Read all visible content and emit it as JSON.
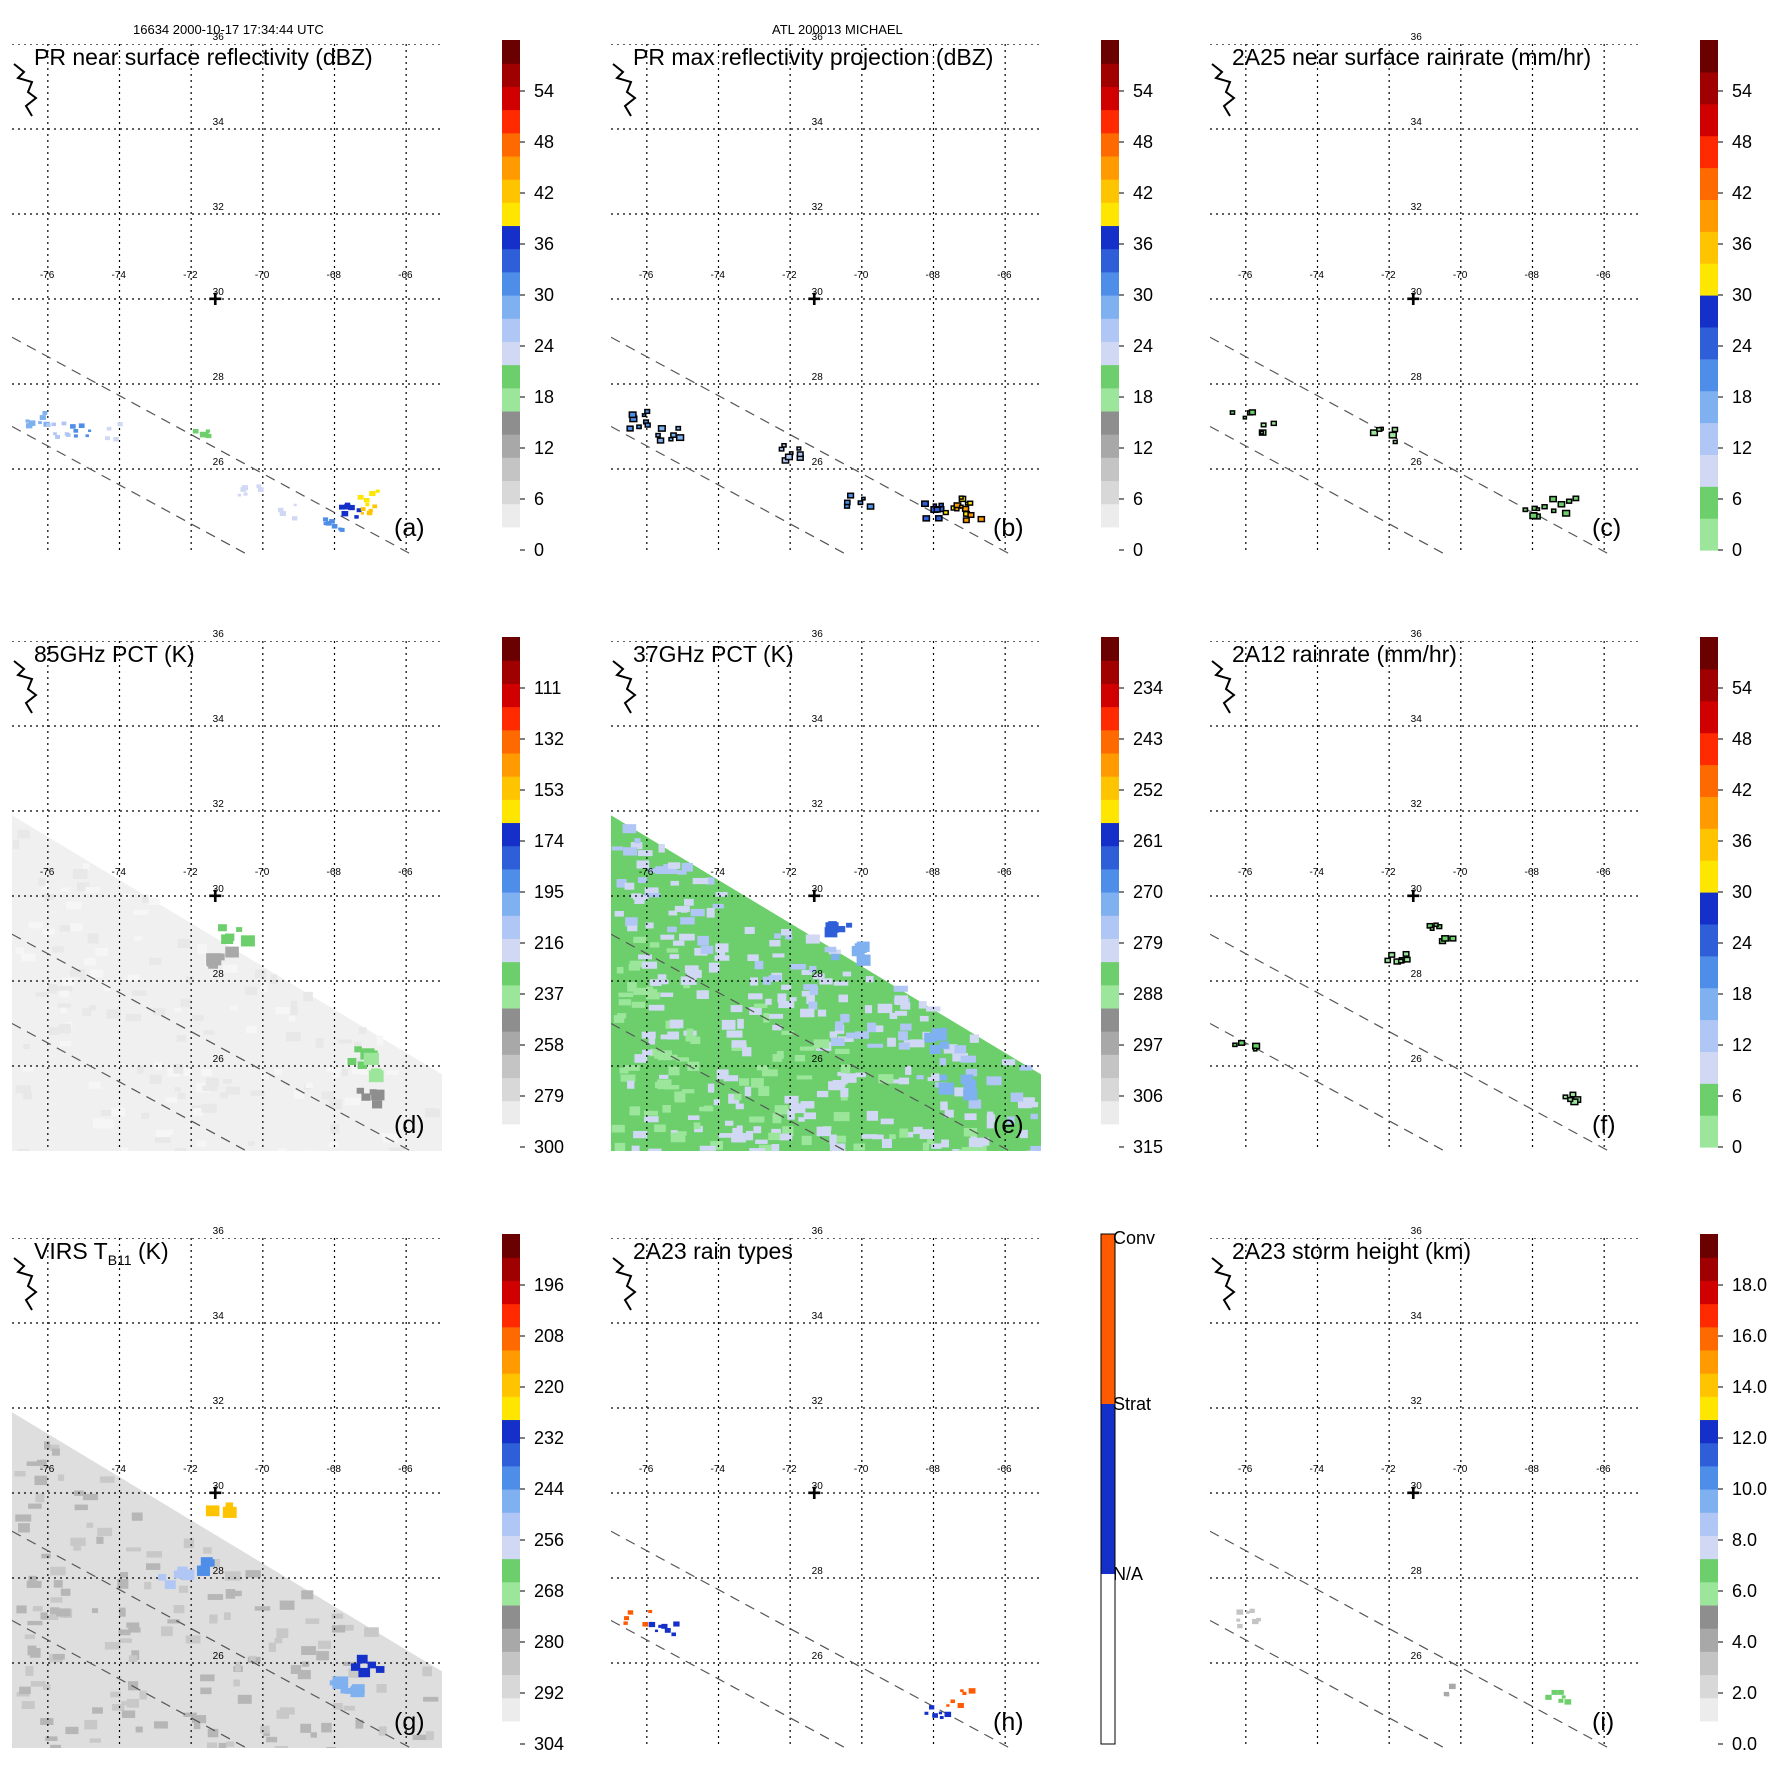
{
  "header": {
    "left": "16634 2000-10-17 17:34:44 UTC",
    "center": "ATL 200013 MICHAEL"
  },
  "colors": {
    "grayscale": [
      "#ffffff",
      "#ececec",
      "#d8d8d8",
      "#c4c4c4",
      "#a8a8a8",
      "#8e8e8e"
    ],
    "green": [
      "#9be69b",
      "#6ccf6c"
    ],
    "blue": [
      "#d0d8f4",
      "#b0c6f4",
      "#7fb0f0",
      "#4f8ee8",
      "#2f5fd8",
      "#1430c8"
    ],
    "warm": [
      "#ffe600",
      "#ffc400",
      "#ff9a00",
      "#ff6a00",
      "#ff2a00",
      "#d00000",
      "#a00000",
      "#6a0000"
    ],
    "raintype": [
      "#ffffff",
      "#1430c8",
      "#ff5a00"
    ],
    "sky_swath": "#f0f0f0",
    "ir_swath": "#dedede"
  },
  "map": {
    "lon_labels": [
      "-76",
      "-74",
      "-72",
      "-70",
      "-68",
      "-66"
    ],
    "lat_labels": [
      "36",
      "34",
      "32",
      "30",
      "28",
      "26"
    ],
    "storm_center_label": "+"
  },
  "panels": [
    {
      "id": "a",
      "title": "PR near surface reflectivity (dBZ)",
      "letter": "(a)",
      "cbar_labels": [
        "0",
        "6",
        "12",
        "18",
        "24",
        "30",
        "36",
        "42",
        "48",
        "54"
      ]
    },
    {
      "id": "b",
      "title": "PR max reflectivity projection (dBZ)",
      "letter": "(b)",
      "cbar_labels": [
        "0",
        "6",
        "12",
        "18",
        "24",
        "30",
        "36",
        "42",
        "48",
        "54"
      ]
    },
    {
      "id": "c",
      "title": "2A25 near surface rainrate (mm/hr)",
      "letter": "(c)",
      "cbar_labels": [
        "0",
        "6",
        "12",
        "18",
        "24",
        "30",
        "36",
        "42",
        "48",
        "54"
      ]
    },
    {
      "id": "d",
      "title": "85GHz PCT (K)",
      "letter": "(d)",
      "cbar_labels": [
        "300",
        "279",
        "258",
        "237",
        "216",
        "195",
        "174",
        "153",
        "132",
        "111"
      ]
    },
    {
      "id": "e",
      "title": "37GHz PCT (K)",
      "letter": "(e)",
      "cbar_labels": [
        "315",
        "306",
        "297",
        "288",
        "279",
        "270",
        "261",
        "252",
        "243",
        "234"
      ]
    },
    {
      "id": "f",
      "title": "2A12 rainrate (mm/hr)",
      "letter": "(f)",
      "cbar_labels": [
        "0",
        "6",
        "12",
        "18",
        "24",
        "30",
        "36",
        "42",
        "48",
        "54"
      ]
    },
    {
      "id": "g",
      "title": "VIRS T",
      "title_sub": "B11",
      "title_tail": " (K)",
      "letter": "(g)",
      "cbar_labels": [
        "304",
        "292",
        "280",
        "268",
        "256",
        "244",
        "232",
        "220",
        "208",
        "196"
      ]
    },
    {
      "id": "h",
      "title": "2A23 rain types",
      "letter": "(h)",
      "cbar_labels": [
        "N/A",
        "Strat",
        "Conv"
      ]
    },
    {
      "id": "i",
      "title": "2A23 storm height (km)",
      "letter": "(i)",
      "cbar_labels": [
        "0.0",
        "2.0",
        "4.0",
        "6.0",
        "8.0",
        "10.0",
        "12.0",
        "14.0",
        "16.0",
        "18.0"
      ]
    }
  ],
  "chart_data": [
    {
      "type": "heatmap",
      "panel": "a",
      "title": "PR near surface reflectivity (dBZ)",
      "units": "dBZ",
      "colorbar_ticks": [
        0,
        6,
        12,
        18,
        24,
        30,
        36,
        42,
        48,
        54
      ],
      "clim": [
        0,
        60
      ],
      "lon_range": [
        -77,
        -65
      ],
      "lat_range": [
        24,
        36
      ],
      "storm_center": {
        "lon": -71.3,
        "lat": 30
      },
      "features": [
        {
          "lon": -76.4,
          "lat": 27.2,
          "value": 28
        },
        {
          "lon": -75.8,
          "lat": 27.0,
          "value": 26
        },
        {
          "lon": -75.2,
          "lat": 26.9,
          "value": 30
        },
        {
          "lon": -74.2,
          "lat": 26.9,
          "value": 22
        },
        {
          "lon": -71.6,
          "lat": 27.0,
          "value": 20
        },
        {
          "lon": -70.4,
          "lat": 25.6,
          "value": 24
        },
        {
          "lon": -69.4,
          "lat": 25.1,
          "value": 22
        },
        {
          "lon": -68.2,
          "lat": 24.7,
          "value": 30
        },
        {
          "lon": -67.6,
          "lat": 25.0,
          "value": 36
        },
        {
          "lon": -67.2,
          "lat": 25.4,
          "value": 40
        },
        {
          "lon": -67.0,
          "lat": 25.1,
          "value": 42
        }
      ]
    },
    {
      "type": "heatmap",
      "panel": "b",
      "title": "PR max reflectivity projection (dBZ)",
      "units": "dBZ",
      "colorbar_ticks": [
        0,
        6,
        12,
        18,
        24,
        30,
        36,
        42,
        48,
        54
      ],
      "clim": [
        0,
        60
      ],
      "lon_range": [
        -77,
        -65
      ],
      "lat_range": [
        24,
        36
      ],
      "storm_center": {
        "lon": -71.3,
        "lat": 30
      },
      "features": [
        {
          "lon": -76.4,
          "lat": 27.2,
          "value": 30
        },
        {
          "lon": -75.4,
          "lat": 26.9,
          "value": 28
        },
        {
          "lon": -72.0,
          "lat": 26.4,
          "value": 26
        },
        {
          "lon": -70.2,
          "lat": 25.3,
          "value": 30
        },
        {
          "lon": -68.0,
          "lat": 25.1,
          "value": 34
        },
        {
          "lon": -67.4,
          "lat": 25.2,
          "value": 40
        },
        {
          "lon": -67.1,
          "lat": 25.0,
          "value": 44
        }
      ]
    },
    {
      "type": "heatmap",
      "panel": "c",
      "title": "2A25 near surface rainrate (mm/hr)",
      "units": "mm/hr",
      "colorbar_ticks": [
        0,
        6,
        12,
        18,
        24,
        30,
        36,
        42,
        48,
        54
      ],
      "clim": [
        0,
        60
      ],
      "lon_range": [
        -77,
        -65
      ],
      "lat_range": [
        24,
        36
      ],
      "storm_center": {
        "lon": -71.3,
        "lat": 30
      },
      "features": [
        {
          "lon": -76.2,
          "lat": 27.2,
          "value": 4
        },
        {
          "lon": -75.4,
          "lat": 27.0,
          "value": 3
        },
        {
          "lon": -72.2,
          "lat": 26.8,
          "value": 2
        },
        {
          "lon": -68.0,
          "lat": 25.1,
          "value": 4
        },
        {
          "lon": -67.2,
          "lat": 25.2,
          "value": 6
        }
      ]
    },
    {
      "type": "heatmap",
      "panel": "d",
      "title": "85GHz PCT (K)",
      "units": "K",
      "colorbar_ticks": [
        300,
        279,
        258,
        237,
        216,
        195,
        174,
        153,
        132,
        111
      ],
      "clim": [
        300,
        90
      ],
      "lon_range": [
        -77,
        -65
      ],
      "lat_range": [
        24,
        36
      ],
      "storm_center": {
        "lon": -71.3,
        "lat": 30
      },
      "features": [
        {
          "lon": -70.9,
          "lat": 29.2,
          "value": 225
        },
        {
          "lon": -71.4,
          "lat": 28.6,
          "value": 255
        },
        {
          "lon": -67.4,
          "lat": 26.3,
          "value": 230
        },
        {
          "lon": -66.9,
          "lat": 26.1,
          "value": 235
        },
        {
          "lon": -67.2,
          "lat": 25.3,
          "value": 245
        }
      ]
    },
    {
      "type": "heatmap",
      "panel": "e",
      "title": "37GHz PCT (K)",
      "units": "K",
      "colorbar_ticks": [
        315,
        306,
        297,
        288,
        279,
        270,
        261,
        252,
        243,
        234
      ],
      "clim": [
        315,
        225
      ],
      "lon_range": [
        -77,
        -65
      ],
      "lat_range": [
        24,
        36
      ],
      "storm_center": {
        "lon": -71.3,
        "lat": 30
      },
      "features": [
        {
          "lon": -70.8,
          "lat": 29.2,
          "value": 262
        },
        {
          "lon": -70.5,
          "lat": 28.8,
          "value": 272
        },
        {
          "lon": -68.0,
          "lat": 26.7,
          "value": 274
        },
        {
          "lon": -67.5,
          "lat": 25.6,
          "value": 272
        }
      ]
    },
    {
      "type": "heatmap",
      "panel": "f",
      "title": "2A12 rainrate (mm/hr)",
      "units": "mm/hr",
      "colorbar_ticks": [
        0,
        6,
        12,
        18,
        24,
        30,
        36,
        42,
        48,
        54
      ],
      "clim": [
        0,
        60
      ],
      "lon_range": [
        -77,
        -65
      ],
      "lat_range": [
        24,
        36
      ],
      "storm_center": {
        "lon": -71.3,
        "lat": 30
      },
      "features": [
        {
          "lon": -70.6,
          "lat": 29.2,
          "value": 4
        },
        {
          "lon": -71.8,
          "lat": 28.6,
          "value": 3
        },
        {
          "lon": -76.0,
          "lat": 26.6,
          "value": 4
        },
        {
          "lon": -67.0,
          "lat": 25.4,
          "value": 3
        }
      ]
    },
    {
      "type": "heatmap",
      "panel": "g",
      "title": "VIRS TB11 (K)",
      "units": "K",
      "colorbar_ticks": [
        304,
        292,
        280,
        268,
        256,
        244,
        232,
        220,
        208,
        196
      ],
      "clim": [
        304,
        184
      ],
      "lon_range": [
        -77,
        -65
      ],
      "lat_range": [
        24,
        36
      ],
      "storm_center": {
        "lon": -71.3,
        "lat": 30
      },
      "features": [
        {
          "lon": -71.3,
          "lat": 29.6,
          "value": 222
        },
        {
          "lon": -71.8,
          "lat": 28.4,
          "value": 240
        },
        {
          "lon": -72.6,
          "lat": 28.1,
          "value": 250
        },
        {
          "lon": -67.2,
          "lat": 26.0,
          "value": 232
        },
        {
          "lon": -67.8,
          "lat": 25.5,
          "value": 245
        }
      ]
    },
    {
      "type": "heatmap",
      "panel": "h",
      "title": "2A23 rain types",
      "categories": [
        "N/A",
        "Strat",
        "Conv"
      ],
      "lon_range": [
        -77,
        -65
      ],
      "lat_range": [
        24,
        36
      ],
      "storm_center": {
        "lon": -71.3,
        "lat": 30
      },
      "features": [
        {
          "lon": -76.3,
          "lat": 27.1,
          "value": "Conv"
        },
        {
          "lon": -75.6,
          "lat": 26.9,
          "value": "Strat"
        },
        {
          "lon": -67.3,
          "lat": 25.2,
          "value": "Conv"
        },
        {
          "lon": -68.0,
          "lat": 24.9,
          "value": "Strat"
        }
      ]
    },
    {
      "type": "heatmap",
      "panel": "i",
      "title": "2A23 storm height (km)",
      "units": "km",
      "colorbar_ticks": [
        0.0,
        2.0,
        4.0,
        6.0,
        8.0,
        10.0,
        12.0,
        14.0,
        16.0,
        18.0
      ],
      "clim": [
        0,
        20
      ],
      "lon_range": [
        -77,
        -65
      ],
      "lat_range": [
        24,
        36
      ],
      "storm_center": {
        "lon": -71.3,
        "lat": 30
      },
      "features": [
        {
          "lon": -76.0,
          "lat": 27.1,
          "value": 3
        },
        {
          "lon": -70.4,
          "lat": 25.4,
          "value": 4
        },
        {
          "lon": -67.4,
          "lat": 25.3,
          "value": 7
        }
      ]
    }
  ]
}
